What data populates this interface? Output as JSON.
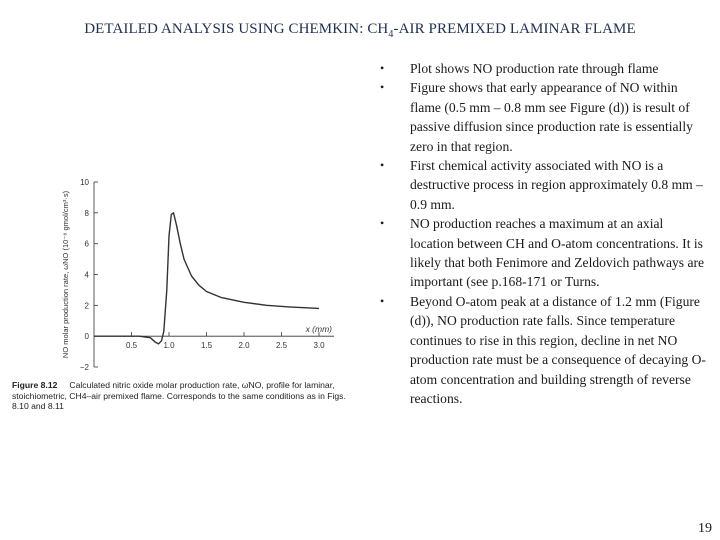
{
  "slide": {
    "title_main": "DETAILED ANALYSIS USING CHEMKIN: CH",
    "title_sub": "4",
    "title_rest": "-AIR PREMIXED LAMINAR FLAME",
    "bullet_symbol": "•",
    "bullets": [
      "Plot shows NO production rate through flame",
      "Figure shows that early appearance of NO within flame (0.5 mm – 0.8 mm see Figure (d)) is result of passive diffusion since production rate is essentially zero in that region.",
      "First chemical activity associated with NO is a destructive process in region approximately 0.8 mm – 0.9 mm.",
      "NO production reaches a maximum at an axial location between CH and O-atom concentrations. It is likely that both Fenimore and Zeldovich pathways are important (see p.168-171 or Turns.",
      "Beyond O-atom peak at a distance of 1.2 mm (Figure (d)), NO production rate falls. Since temperature continues to rise in this region, decline in net NO production rate must be a consequence of decaying O-atom concentration and building strength of reverse reactions."
    ],
    "page_number": "19"
  },
  "figure": {
    "caption_label": "Figure 8.12",
    "caption_text": "Calculated nitric oxide molar production rate, ω̇NO, profile for laminar, stoichiometric, CH4–air premixed flame. Corresponds to the same conditions as in Figs. 8.10 and 8.11"
  },
  "chart_data": {
    "type": "line",
    "xlabel": "x (mm)",
    "ylabel": "NO molar production rate, ω̇NO (10⁻⁸ gmol/cm³·s)",
    "x_ticks": [
      "0.5",
      "1.0",
      "1.5",
      "2.0",
      "2.5",
      "3.0"
    ],
    "y_ticks": [
      "−2",
      "0",
      "2",
      "4",
      "6",
      "8",
      "10"
    ],
    "xlim": [
      0,
      3.2
    ],
    "ylim": [
      -2,
      10
    ],
    "color": "#333333",
    "series": [
      {
        "x": [
          0.0,
          0.3,
          0.6,
          0.75,
          0.82,
          0.86,
          0.9,
          0.93,
          0.97,
          1.0,
          1.03,
          1.06,
          1.1,
          1.15,
          1.2,
          1.3,
          1.4,
          1.5,
          1.7,
          2.0,
          2.3,
          2.6,
          3.0
        ],
        "y": [
          0.0,
          0.0,
          0.0,
          -0.1,
          -0.4,
          -0.5,
          -0.3,
          0.3,
          3.0,
          6.5,
          7.9,
          8.0,
          7.2,
          6.0,
          5.0,
          3.9,
          3.3,
          2.9,
          2.5,
          2.2,
          2.0,
          1.9,
          1.8
        ]
      }
    ]
  }
}
